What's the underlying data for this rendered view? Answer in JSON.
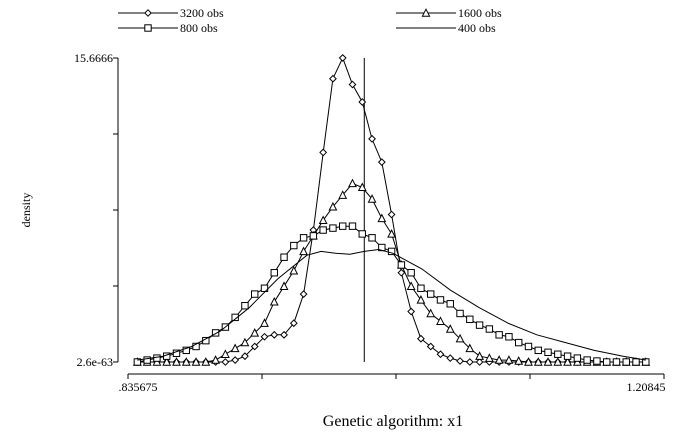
{
  "chart_data": {
    "type": "line",
    "title": "",
    "xlabel": "Genetic algorithm: x1",
    "ylabel": "density",
    "xlim": [
      0.835675,
      1.20845
    ],
    "ylim": [
      2.6e-63,
      15.6666
    ],
    "x_tick_labels": [
      ".835675",
      "1.20845"
    ],
    "y_tick_labels": [
      "15.6666",
      "2.6e-63"
    ],
    "x_tick_values": [
      0.835675,
      0.928869,
      1.022063,
      1.115256,
      1.20845
    ],
    "y_tick_values": [
      2.6e-63,
      3.91665,
      7.8333,
      11.74995,
      15.6666
    ],
    "vertical_line_x": 1.0,
    "legend_position": "top",
    "grid": false,
    "series": [
      {
        "name": "3200 obs",
        "marker": "diamond",
        "x": [
          0.8422,
          0.849,
          0.8558,
          0.8626,
          0.8694,
          0.8762,
          0.883,
          0.8898,
          0.8966,
          0.9034,
          0.9102,
          0.917,
          0.9238,
          0.9306,
          0.9374,
          0.9442,
          0.951,
          0.9578,
          0.9646,
          0.9714,
          0.9782,
          0.985,
          0.9918,
          0.9986,
          1.0054,
          1.0122,
          1.019,
          1.0258,
          1.0326,
          1.0394,
          1.0462,
          1.053,
          1.0598,
          1.0666,
          1.0734,
          1.0802,
          1.087,
          1.0938,
          1.1006,
          1.1074,
          1.1142,
          1.121,
          1.1278,
          1.1346,
          1.1414,
          1.1482,
          1.155,
          1.1618,
          1.1686,
          1.1754,
          1.1822,
          1.189,
          1.1958
        ],
        "y": [
          0,
          0,
          0,
          0,
          0,
          0,
          0,
          0,
          0,
          0,
          0.1,
          0.3,
          0.8,
          1.3,
          1.4,
          1.4,
          2.0,
          3.5,
          6.8,
          10.8,
          14.6,
          15.67,
          14.3,
          13.4,
          11.5,
          10.3,
          7.6,
          4.6,
          2.6,
          1.2,
          0.8,
          0.4,
          0.2,
          0.05,
          0,
          0,
          0,
          0,
          0,
          0,
          0,
          0,
          0,
          0,
          0,
          0,
          0,
          0,
          0,
          0,
          0,
          0,
          0
        ]
      },
      {
        "name": "1600 obs",
        "marker": "triangle",
        "x": [
          0.8422,
          0.849,
          0.8558,
          0.8626,
          0.8694,
          0.8762,
          0.883,
          0.8898,
          0.8966,
          0.9034,
          0.9102,
          0.917,
          0.9238,
          0.9306,
          0.9374,
          0.9442,
          0.951,
          0.9578,
          0.9646,
          0.9714,
          0.9782,
          0.985,
          0.9918,
          0.9986,
          1.0054,
          1.0122,
          1.019,
          1.0258,
          1.0326,
          1.0394,
          1.0462,
          1.053,
          1.0598,
          1.0666,
          1.0734,
          1.0802,
          1.087,
          1.0938,
          1.1006,
          1.1074,
          1.1142,
          1.121,
          1.1278,
          1.1346,
          1.1414,
          1.1482,
          1.155,
          1.1618,
          1.1686,
          1.1754,
          1.1822,
          1.189,
          1.1958
        ],
        "y": [
          0,
          0,
          0,
          0,
          0,
          0,
          0,
          0,
          0.1,
          0.4,
          0.7,
          1.0,
          1.5,
          2.0,
          3.1,
          3.9,
          4.7,
          5.7,
          6.5,
          7.3,
          8.0,
          8.6,
          9.2,
          9.0,
          8.4,
          7.4,
          6.6,
          5.0,
          3.9,
          3.2,
          2.5,
          2.1,
          1.7,
          1.2,
          0.7,
          0.3,
          0.2,
          0.1,
          0.1,
          0.05,
          0,
          0,
          0,
          0,
          0,
          0,
          0,
          0,
          0,
          0,
          0,
          0,
          0
        ]
      },
      {
        "name": "800 obs",
        "marker": "square",
        "x": [
          0.8422,
          0.849,
          0.8558,
          0.8626,
          0.8694,
          0.8762,
          0.883,
          0.8898,
          0.8966,
          0.9034,
          0.9102,
          0.917,
          0.9238,
          0.9306,
          0.9374,
          0.9442,
          0.951,
          0.9578,
          0.9646,
          0.9714,
          0.9782,
          0.985,
          0.9918,
          0.9986,
          1.0054,
          1.0122,
          1.019,
          1.0258,
          1.0326,
          1.0394,
          1.0462,
          1.053,
          1.0598,
          1.0666,
          1.0734,
          1.0802,
          1.087,
          1.0938,
          1.1006,
          1.1074,
          1.1142,
          1.121,
          1.1278,
          1.1346,
          1.1414,
          1.1482,
          1.155,
          1.1618,
          1.1686,
          1.1754,
          1.1822,
          1.189,
          1.1958
        ],
        "y": [
          0,
          0.1,
          0.2,
          0.3,
          0.45,
          0.6,
          0.8,
          1.1,
          1.5,
          1.8,
          2.3,
          2.9,
          3.5,
          3.8,
          4.6,
          5.4,
          6.0,
          6.4,
          6.5,
          6.8,
          6.9,
          7.0,
          7.0,
          6.6,
          6.4,
          5.9,
          5.7,
          5.0,
          4.6,
          3.8,
          3.5,
          3.2,
          3.0,
          2.5,
          2.2,
          1.9,
          1.7,
          1.4,
          1.3,
          1.0,
          0.8,
          0.6,
          0.5,
          0.4,
          0.3,
          0.2,
          0.1,
          0.05,
          0,
          0,
          0,
          0,
          0
        ]
      },
      {
        "name": "400 obs",
        "marker": "none",
        "x": [
          0.8422,
          0.86,
          0.88,
          0.9,
          0.92,
          0.94,
          0.96,
          0.97,
          0.98,
          0.99,
          1.0,
          1.01,
          1.02,
          1.04,
          1.06,
          1.08,
          1.1,
          1.12,
          1.14,
          1.16,
          1.18,
          1.1958
        ],
        "y": [
          0.1,
          0.3,
          0.8,
          1.6,
          2.8,
          4.3,
          5.5,
          5.7,
          5.6,
          5.55,
          5.7,
          5.8,
          5.6,
          4.8,
          3.7,
          2.8,
          2.0,
          1.4,
          1.0,
          0.6,
          0.3,
          0.1
        ]
      }
    ]
  }
}
